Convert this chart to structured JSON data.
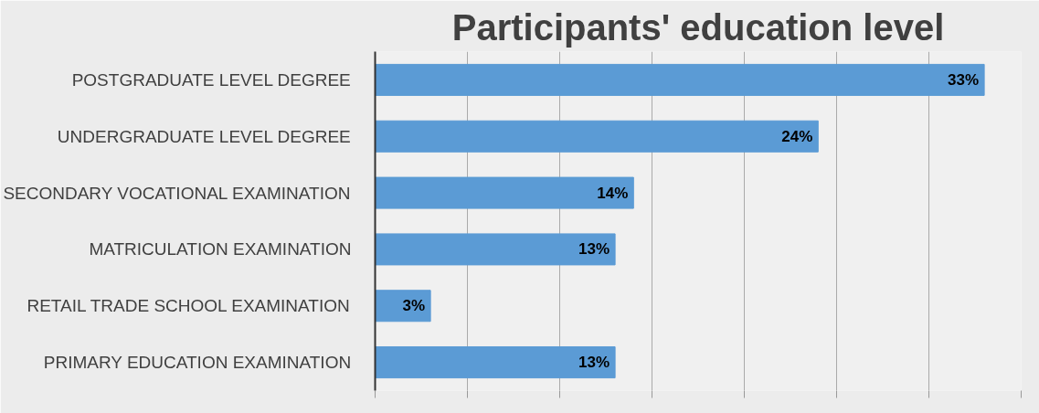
{
  "chart_data": {
    "type": "bar",
    "orientation": "horizontal",
    "title": "Participants' education level",
    "categories": [
      "POSTGRADUATE LEVEL DEGREE",
      "UNDERGRADUATE LEVEL DEGREE",
      "SECONDARY VOCATIONAL EXAMINATION",
      "MATRICULATION EXAMINATION",
      "RETAIL TRADE SCHOOL EXAMINATION",
      "PRIMARY EDUCATION EXAMINATION"
    ],
    "values": [
      33,
      24,
      14,
      13,
      3,
      13
    ],
    "value_labels": [
      "33%",
      "24%",
      "14%",
      "13%",
      "3%",
      "13%"
    ],
    "color": "#5b9bd5",
    "xlim": [
      0,
      35
    ],
    "xticks": [
      {
        "value": 0,
        "label": null
      },
      {
        "value": 5,
        "label": null
      },
      {
        "value": 10,
        "label": null
      },
      {
        "value": 15,
        "label": null
      },
      {
        "value": 20,
        "label": null
      },
      {
        "value": 25,
        "label": null
      },
      {
        "value": 30,
        "label": null
      },
      {
        "value": 35,
        "label": null
      }
    ],
    "tick_labels": "y",
    "grid": "x"
  }
}
